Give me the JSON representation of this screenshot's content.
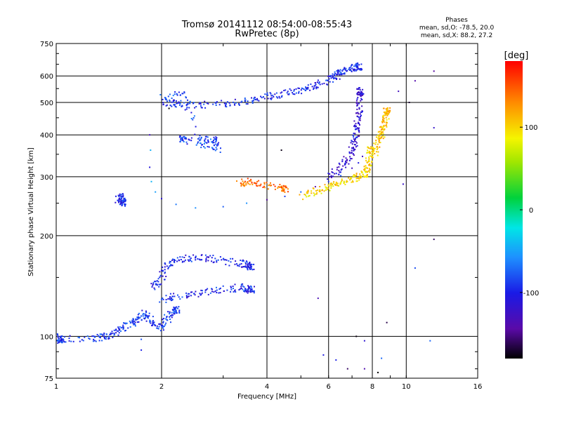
{
  "chart_data": {
    "type": "scatter",
    "title": "Tromsø 20141112 08:54:00-08:55:43",
    "subtitle": "RwPretec (8p)",
    "xlabel": "Frequency [MHz]",
    "ylabel": "Stationary phase Virtual Height [km]",
    "xscale": "log",
    "yscale": "log",
    "xlim": [
      1,
      16
    ],
    "ylim": [
      75,
      750
    ],
    "grid": true,
    "x_ticks": [
      1,
      2,
      4,
      6,
      8,
      10,
      16
    ],
    "x_tick_labels": [
      "1",
      "2",
      "4",
      "6",
      "8",
      "10",
      "16"
    ],
    "y_ticks": [
      75,
      100,
      200,
      300,
      400,
      500,
      600,
      750
    ],
    "y_tick_labels": [
      "75",
      "100",
      "200",
      "300",
      "400",
      "500",
      "600",
      "750"
    ],
    "phase_info": {
      "title": "Phases",
      "line_o": "mean, sd,O: -78.5, 20.0",
      "line_x": "mean, sd,X:  88.2, 27.2"
    },
    "colorbar": {
      "label": "[deg]",
      "range": [
        -180,
        180
      ],
      "tick_values": [
        100,
        0,
        -100
      ],
      "tick_labels": [
        "100",
        "0",
        "-100"
      ]
    },
    "traces": [
      {
        "points": [
          [
            1.02,
            100
          ],
          [
            1.02,
            97
          ],
          [
            1.05,
            98
          ],
          [
            1.3,
            99
          ],
          [
            1.4,
            100
          ],
          [
            1.5,
            103
          ],
          [
            1.6,
            108
          ],
          [
            1.7,
            112
          ],
          [
            1.8,
            117
          ],
          [
            1.9,
            110
          ],
          [
            2.0,
            105
          ],
          [
            2.1,
            115
          ],
          [
            2.2,
            120
          ]
        ],
        "phase": -90
      },
      {
        "points": [
          [
            1.9,
            140
          ],
          [
            2.0,
            150
          ],
          [
            2.1,
            165
          ],
          [
            2.3,
            170
          ],
          [
            2.6,
            172
          ],
          [
            3.0,
            168
          ],
          [
            3.4,
            165
          ],
          [
            3.6,
            162
          ]
        ],
        "phase": -100
      },
      {
        "points": [
          [
            2.0,
            128
          ],
          [
            2.2,
            132
          ],
          [
            2.6,
            135
          ],
          [
            3.0,
            138
          ],
          [
            3.4,
            140
          ],
          [
            3.6,
            138
          ]
        ],
        "phase": -95
      },
      {
        "points": [
          [
            1.5,
            255
          ],
          [
            1.52,
            262
          ],
          [
            1.55,
            250
          ]
        ],
        "phase": -95
      },
      {
        "points": [
          [
            1.85,
            400
          ],
          [
            1.86,
            360
          ],
          [
            1.85,
            320
          ],
          [
            1.87,
            290
          ],
          [
            1.92,
            270
          ],
          [
            2.0,
            258
          ],
          [
            2.2,
            248
          ],
          [
            2.5,
            242
          ],
          [
            3.0,
            244
          ],
          [
            3.5,
            250
          ],
          [
            4.0,
            256
          ],
          [
            4.5,
            262
          ],
          [
            5.0,
            270
          ],
          [
            5.5,
            280
          ],
          [
            6.0,
            290
          ],
          [
            6.5,
            302
          ],
          [
            7.0,
            318
          ],
          [
            7.3,
            330
          ],
          [
            7.5,
            345
          ]
        ],
        "phase": -100
      },
      {
        "points": [
          [
            5.0,
            262
          ],
          [
            5.5,
            272
          ],
          [
            6.0,
            280
          ],
          [
            6.5,
            288
          ],
          [
            7.0,
            295
          ],
          [
            7.5,
            302
          ],
          [
            7.7,
            310
          ],
          [
            7.8,
            330
          ],
          [
            7.9,
            360
          ]
        ],
        "phase": 100
      },
      {
        "points": [
          [
            6.0,
            300
          ],
          [
            6.5,
            320
          ],
          [
            6.9,
            345
          ],
          [
            7.1,
            380
          ],
          [
            7.2,
            410
          ],
          [
            7.3,
            450
          ],
          [
            7.35,
            500
          ],
          [
            7.4,
            540
          ]
        ],
        "phase": -115
      },
      {
        "points": [
          [
            8.1,
            350
          ],
          [
            8.3,
            380
          ],
          [
            8.5,
            400
          ],
          [
            8.6,
            420
          ],
          [
            8.7,
            450
          ],
          [
            8.8,
            470
          ]
        ],
        "phase": 110
      },
      {
        "points": [
          [
            2.0,
            500
          ],
          [
            2.2,
            496
          ],
          [
            2.5,
            490
          ],
          [
            3.0,
            496
          ],
          [
            3.5,
            505
          ],
          [
            4.0,
            520
          ],
          [
            4.5,
            530
          ],
          [
            5.0,
            545
          ],
          [
            5.5,
            560
          ],
          [
            6.0,
            585
          ],
          [
            6.3,
            600
          ],
          [
            6.6,
            620
          ],
          [
            7.0,
            630
          ],
          [
            7.3,
            640
          ]
        ],
        "phase": -95
      },
      {
        "points": [
          [
            2.0,
            520
          ],
          [
            2.3,
            530
          ],
          [
            2.6,
            380
          ],
          [
            2.8,
            390
          ],
          [
            2.9,
            360
          ],
          [
            2.3,
            390
          ]
        ],
        "phase": -85
      },
      {
        "points": [
          [
            3.3,
            285
          ],
          [
            3.6,
            290
          ],
          [
            4.0,
            282
          ],
          [
            4.5,
            275
          ]
        ],
        "phase": 140
      },
      {
        "points": [
          [
            9.5,
            540
          ],
          [
            10.2,
            500
          ],
          [
            10.6,
            580
          ],
          [
            12.0,
            620
          ],
          [
            12.0,
            420
          ],
          [
            12.0,
            195
          ],
          [
            10.6,
            160
          ],
          [
            9.8,
            285
          ],
          [
            4.4,
            360
          ],
          [
            5.8,
            88
          ],
          [
            6.3,
            85
          ],
          [
            6.8,
            80
          ],
          [
            7.2,
            100
          ],
          [
            7.6,
            97
          ],
          [
            7.6,
            80
          ],
          [
            8.3,
            78
          ],
          [
            8.5,
            86
          ],
          [
            8.8,
            110
          ],
          [
            11.7,
            97
          ],
          [
            5.6,
            130
          ],
          [
            1.75,
            98
          ],
          [
            1.75,
            91
          ],
          [
            2.1,
            480
          ]
        ],
        "phase": -120
      }
    ]
  }
}
